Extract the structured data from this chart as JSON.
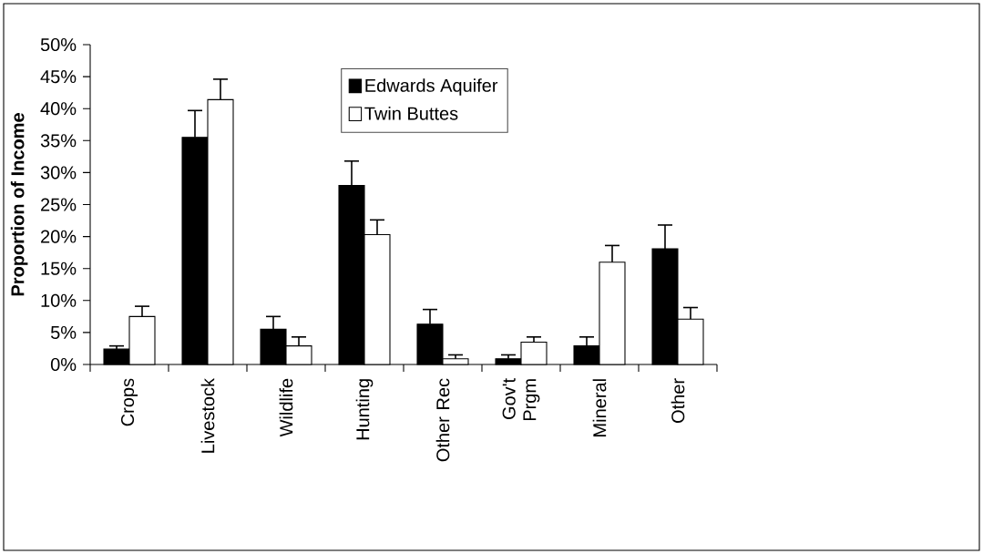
{
  "chart_data": {
    "type": "bar",
    "ylabel": "Proportion of Income",
    "categories": [
      "Crops",
      "Livestock",
      "Wildlife",
      "Hunting",
      "Other Rec",
      "Gov't Prgm",
      "Mineral",
      "Other"
    ],
    "series": [
      {
        "name": "Edwards Aquifer",
        "color": "#000000",
        "values": [
          2.4,
          35.5,
          5.5,
          28.0,
          6.3,
          0.9,
          2.9,
          18.1
        ],
        "errors": [
          0.5,
          4.2,
          2.0,
          3.8,
          2.3,
          0.6,
          1.4,
          3.7
        ]
      },
      {
        "name": "Twin Buttes",
        "color": "#ffffff",
        "values": [
          7.5,
          41.4,
          2.9,
          20.3,
          0.9,
          3.5,
          16.0,
          7.1
        ],
        "errors": [
          1.6,
          3.2,
          1.4,
          2.3,
          0.6,
          0.8,
          2.6,
          1.8
        ]
      }
    ],
    "ylim": [
      0,
      50
    ],
    "yticks": [
      {
        "value": 0,
        "label": "0%"
      },
      {
        "value": 5,
        "label": "5%"
      },
      {
        "value": 10,
        "label": "10%"
      },
      {
        "value": 15,
        "label": "15%"
      },
      {
        "value": 20,
        "label": "20%"
      },
      {
        "value": 25,
        "label": "25%"
      },
      {
        "value": 30,
        "label": "30%"
      },
      {
        "value": 35,
        "label": "35%"
      },
      {
        "value": 40,
        "label": "40%"
      },
      {
        "value": 45,
        "label": "45%"
      },
      {
        "value": 50,
        "label": "50%"
      }
    ],
    "grid": false,
    "legend": "top"
  }
}
